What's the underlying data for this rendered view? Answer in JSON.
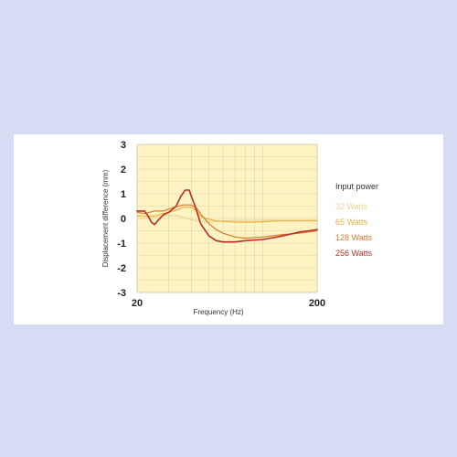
{
  "chart_data": {
    "type": "line",
    "xlabel": "Frequency (Hz)",
    "ylabel": "Displacement difference (mm)",
    "x_scale": "log",
    "xlim": [
      20,
      200
    ],
    "ylim": [
      -3,
      3
    ],
    "x_ticks": [
      "20",
      "200"
    ],
    "y_ticks": [
      "3",
      "2",
      "1",
      "0",
      "-1",
      "-2",
      "-3"
    ],
    "grid": true,
    "legend_title": "Input power",
    "legend_position": "right",
    "series": [
      {
        "name": "32 Watts",
        "color": "#e8d49a",
        "x": [
          20,
          22,
          25,
          28,
          30,
          33,
          36,
          40,
          43,
          45,
          50,
          60,
          70,
          80,
          100,
          120,
          150,
          180,
          200
        ],
        "y": [
          0.0,
          0.02,
          0.05,
          0.1,
          0.12,
          0.12,
          0.05,
          -0.05,
          -0.1,
          -0.12,
          -0.15,
          -0.1,
          -0.08,
          -0.08,
          -0.07,
          -0.07,
          -0.07,
          -0.07,
          -0.07
        ]
      },
      {
        "name": "65 Watts",
        "color": "#e6b23c",
        "x": [
          20,
          22,
          25,
          28,
          32,
          36,
          40,
          43,
          45,
          48,
          55,
          70,
          90,
          120,
          150,
          200
        ],
        "y": [
          0.1,
          0.1,
          0.1,
          0.2,
          0.3,
          0.45,
          0.45,
          0.3,
          0.1,
          0.0,
          -0.1,
          -0.15,
          -0.15,
          -0.1,
          -0.1,
          -0.1
        ]
      },
      {
        "name": "128 Watts",
        "color": "#e07a2e",
        "x": [
          20,
          22,
          25,
          28,
          32,
          36,
          40,
          43,
          46,
          50,
          55,
          60,
          70,
          80,
          100,
          130,
          160,
          200
        ],
        "y": [
          0.25,
          0.2,
          0.3,
          0.3,
          0.45,
          0.55,
          0.55,
          0.4,
          0.1,
          -0.2,
          -0.45,
          -0.6,
          -0.75,
          -0.8,
          -0.75,
          -0.65,
          -0.6,
          -0.5
        ]
      },
      {
        "name": "256 Watts",
        "color": "#b5302a",
        "x": [
          20,
          22,
          23,
          24,
          25,
          26,
          28,
          30,
          33,
          35,
          37,
          39,
          40,
          42,
          45,
          50,
          55,
          60,
          65,
          70,
          80,
          100,
          120,
          140,
          160,
          180,
          200
        ],
        "y": [
          0.3,
          0.3,
          0.1,
          -0.15,
          -0.25,
          -0.1,
          0.15,
          0.25,
          0.5,
          0.9,
          1.15,
          1.15,
          0.9,
          0.5,
          -0.2,
          -0.7,
          -0.9,
          -0.95,
          -0.95,
          -0.95,
          -0.9,
          -0.85,
          -0.75,
          -0.65,
          -0.55,
          -0.5,
          -0.45
        ]
      }
    ]
  }
}
